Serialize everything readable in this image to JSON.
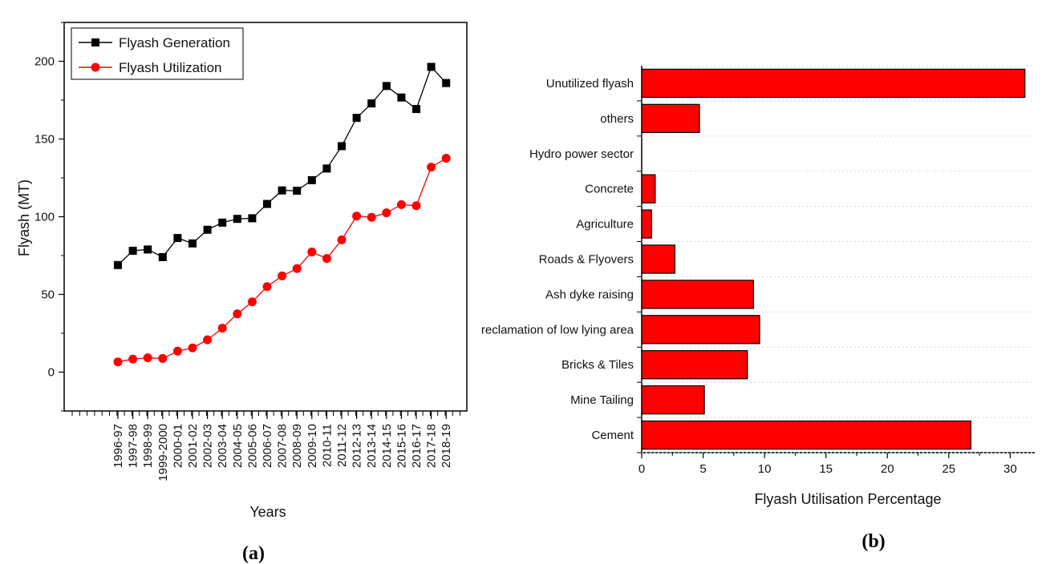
{
  "chart_data": [
    {
      "type": "line",
      "panel_label": "(a)",
      "xlabel": "Years",
      "ylabel": "Flyash (MT)",
      "ylim": [
        -25,
        225
      ],
      "yticks": [
        0,
        50,
        100,
        150,
        200
      ],
      "categories": [
        "1996-97",
        "1997-98",
        "1998-99",
        "1999-2000",
        "2000-01",
        "2001-02",
        "2002-03",
        "2003-04",
        "2004-05",
        "2005-06",
        "2006-07",
        "2007-08",
        "2008-09",
        "2009-10",
        "2010-11",
        "2011-12",
        "2012-13",
        "2013-14",
        "2014-15",
        "2015-16",
        "2016-17",
        "2017-18",
        "2018-19"
      ],
      "legend_position": "top-left",
      "series": [
        {
          "name": "Flyash Generation",
          "color": "#000000",
          "marker": "square",
          "values": [
            68.9,
            78.1,
            78.9,
            74.0,
            86.3,
            82.8,
            91.6,
            96.2,
            98.6,
            99.0,
            108.2,
            116.9,
            116.7,
            123.5,
            131.0,
            145.4,
            163.6,
            172.9,
            184.1,
            176.7,
            169.3,
            196.4,
            186.0
          ]
        },
        {
          "name": "Flyash Utilization",
          "color": "#ff0000",
          "marker": "circle",
          "values": [
            6.6,
            8.4,
            9.2,
            8.8,
            13.5,
            15.6,
            20.8,
            28.3,
            37.5,
            45.2,
            55.0,
            61.9,
            66.6,
            77.3,
            73.1,
            85.1,
            100.4,
            99.6,
            102.5,
            107.8,
            107.1,
            131.9,
            137.6
          ]
        }
      ]
    },
    {
      "type": "bar",
      "orientation": "horizontal",
      "panel_label": "(b)",
      "xlabel": "Flyash Utilisation Percentage",
      "xlim": [
        0,
        32
      ],
      "xticks": [
        0,
        5,
        10,
        15,
        20,
        25,
        30
      ],
      "bar_color": "#ff0000",
      "categories": [
        "Cement",
        "Mine Tailing",
        "Bricks & Tiles",
        "reclamation of low lying area",
        "Ash dyke raising",
        "Roads & Flyovers",
        "Agriculture",
        "Concrete",
        "Hydro power sector",
        "others",
        "Unutilized flyash"
      ],
      "values": [
        26.8,
        5.1,
        8.6,
        9.6,
        9.1,
        2.7,
        0.8,
        1.1,
        0.0,
        4.7,
        31.2
      ]
    }
  ]
}
